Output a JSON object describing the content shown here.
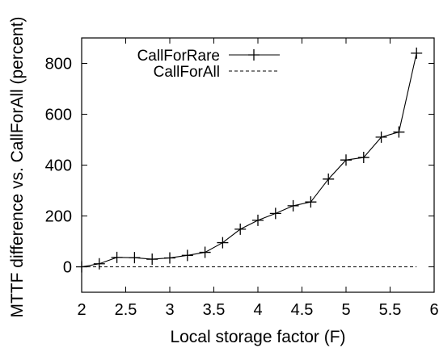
{
  "chart_data": {
    "type": "line",
    "xlabel": "Local storage factor (F)",
    "ylabel": "MTTF difference vs. CallForAll (percent)",
    "xlim": [
      2,
      6
    ],
    "ylim": [
      -100,
      900
    ],
    "xticks": [
      2,
      2.5,
      3,
      3.5,
      4,
      4.5,
      5,
      5.5,
      6
    ],
    "xtick_labels": [
      "2",
      "2.5",
      "3",
      "3.5",
      "4",
      "4.5",
      "5",
      "5.5",
      "6"
    ],
    "yticks": [
      0,
      200,
      400,
      600,
      800
    ],
    "ytick_labels": [
      "0",
      "200",
      "400",
      "600",
      "800"
    ],
    "grid": false,
    "legend_position": "top-center",
    "series": [
      {
        "name": "CallForRare",
        "style": "solid-with-plus-markers",
        "color": "#000000",
        "x": [
          2.0,
          2.2,
          2.4,
          2.6,
          2.8,
          3.0,
          3.2,
          3.4,
          3.6,
          3.8,
          4.0,
          4.2,
          4.4,
          4.6,
          4.8,
          5.0,
          5.2,
          5.4,
          5.6,
          5.8
        ],
        "y": [
          0,
          12,
          37,
          36,
          30,
          35,
          45,
          57,
          95,
          148,
          183,
          210,
          240,
          255,
          345,
          420,
          430,
          510,
          530,
          840
        ]
      },
      {
        "name": "CallForAll",
        "style": "dashed",
        "color": "#000000",
        "x": [
          2.0,
          5.8
        ],
        "y": [
          0,
          0
        ]
      }
    ]
  }
}
